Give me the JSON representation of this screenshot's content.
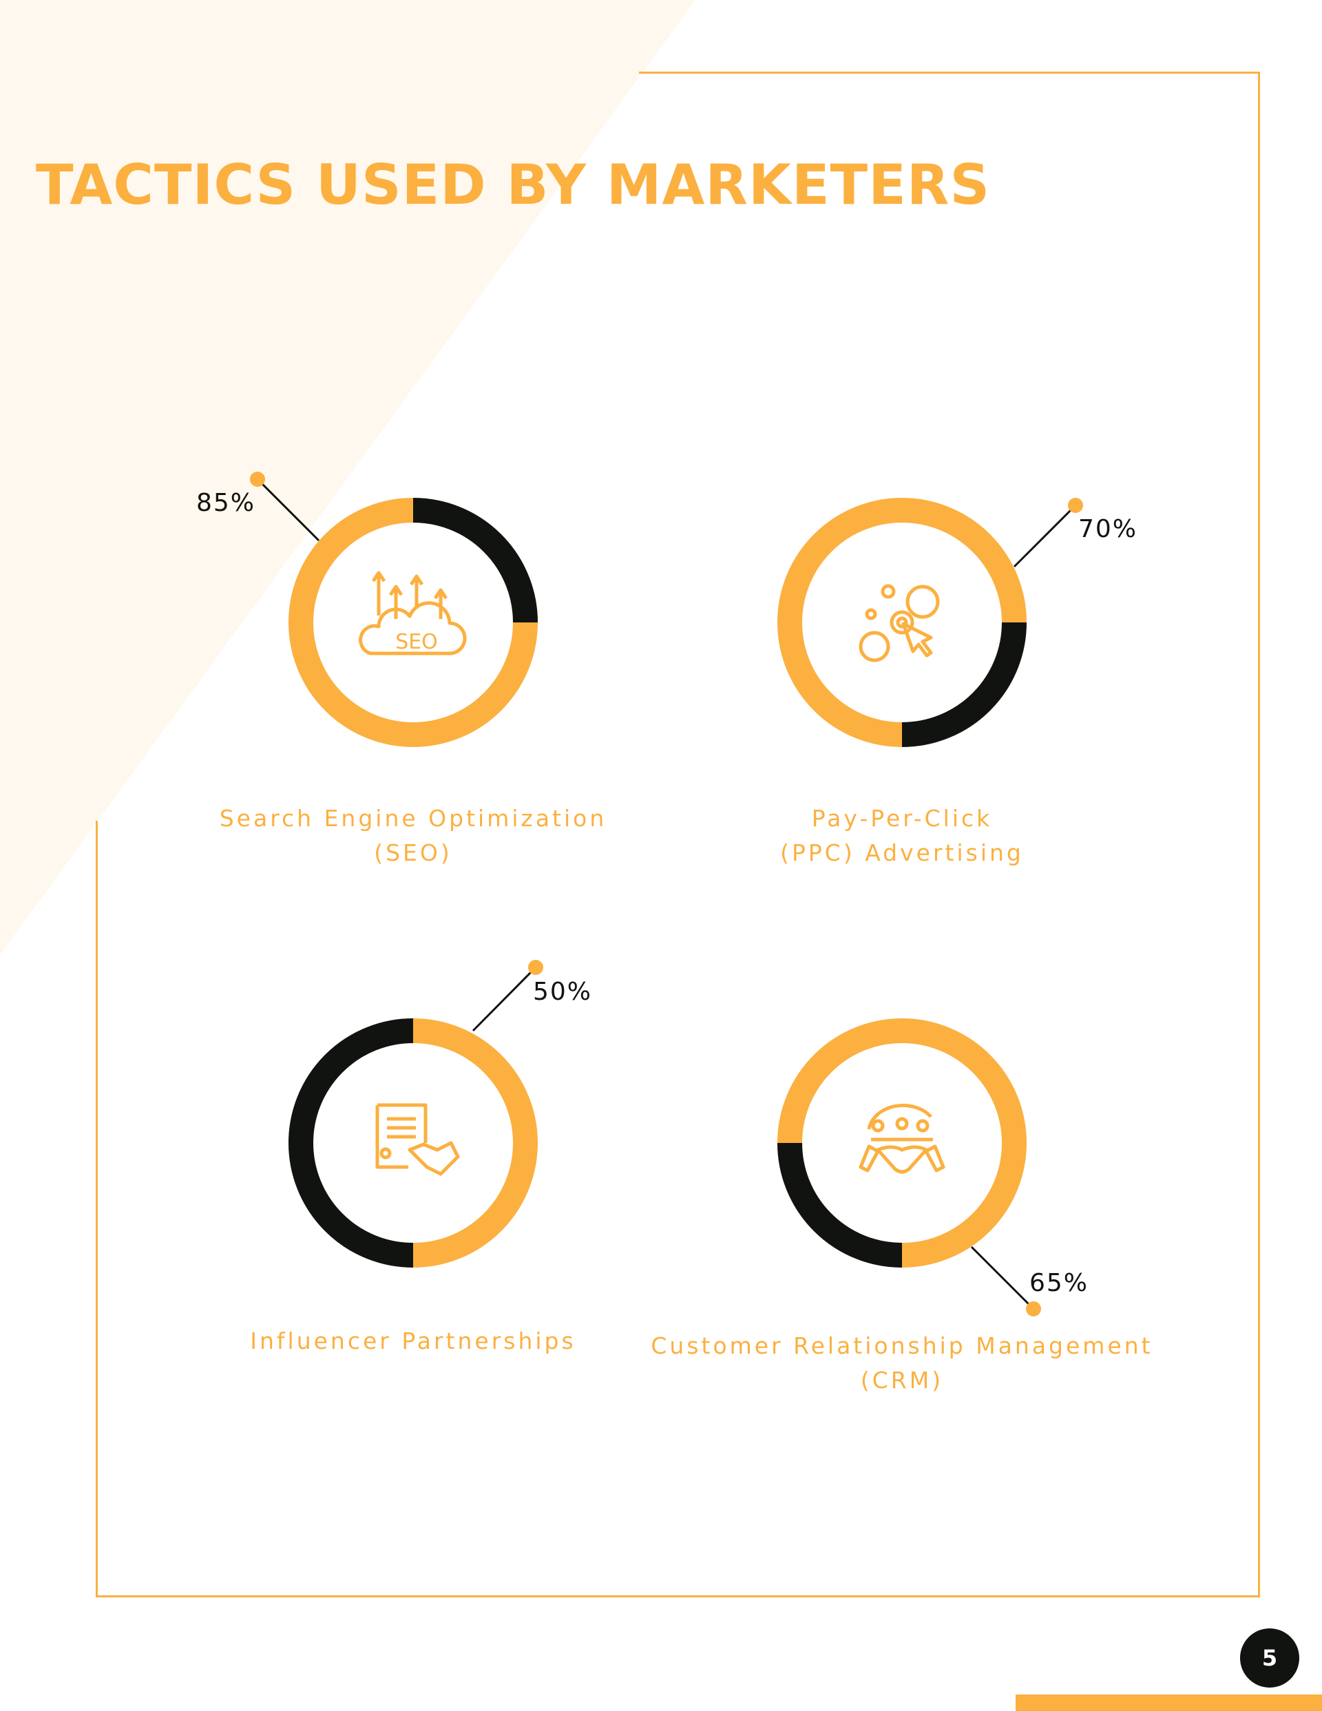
{
  "title": "TACTICS USED BY MARKETERS",
  "page_number": "5",
  "colors": {
    "accent": "#FBB040",
    "dark": "#111311",
    "background_tint": "#FEF8EE"
  },
  "chart_data": {
    "type": "donut",
    "items": [
      {
        "label_line1": "Search Engine Optimization",
        "label_line2": "(SEO)",
        "value": 85,
        "value_label": "85%",
        "icon": "seo-cloud-icon"
      },
      {
        "label_line1": "Pay-Per-Click",
        "label_line2": "(PPC) Advertising",
        "value": 70,
        "value_label": "70%",
        "icon": "ppc-target-coins-icon"
      },
      {
        "label_line1": "Influencer Partnerships",
        "label_line2": "",
        "value": 50,
        "value_label": "50%",
        "icon": "contract-handshake-icon"
      },
      {
        "label_line1": "Customer Relationship Management",
        "label_line2": "(CRM)",
        "value": 65,
        "value_label": "65%",
        "icon": "crm-handshake-icon"
      }
    ]
  }
}
